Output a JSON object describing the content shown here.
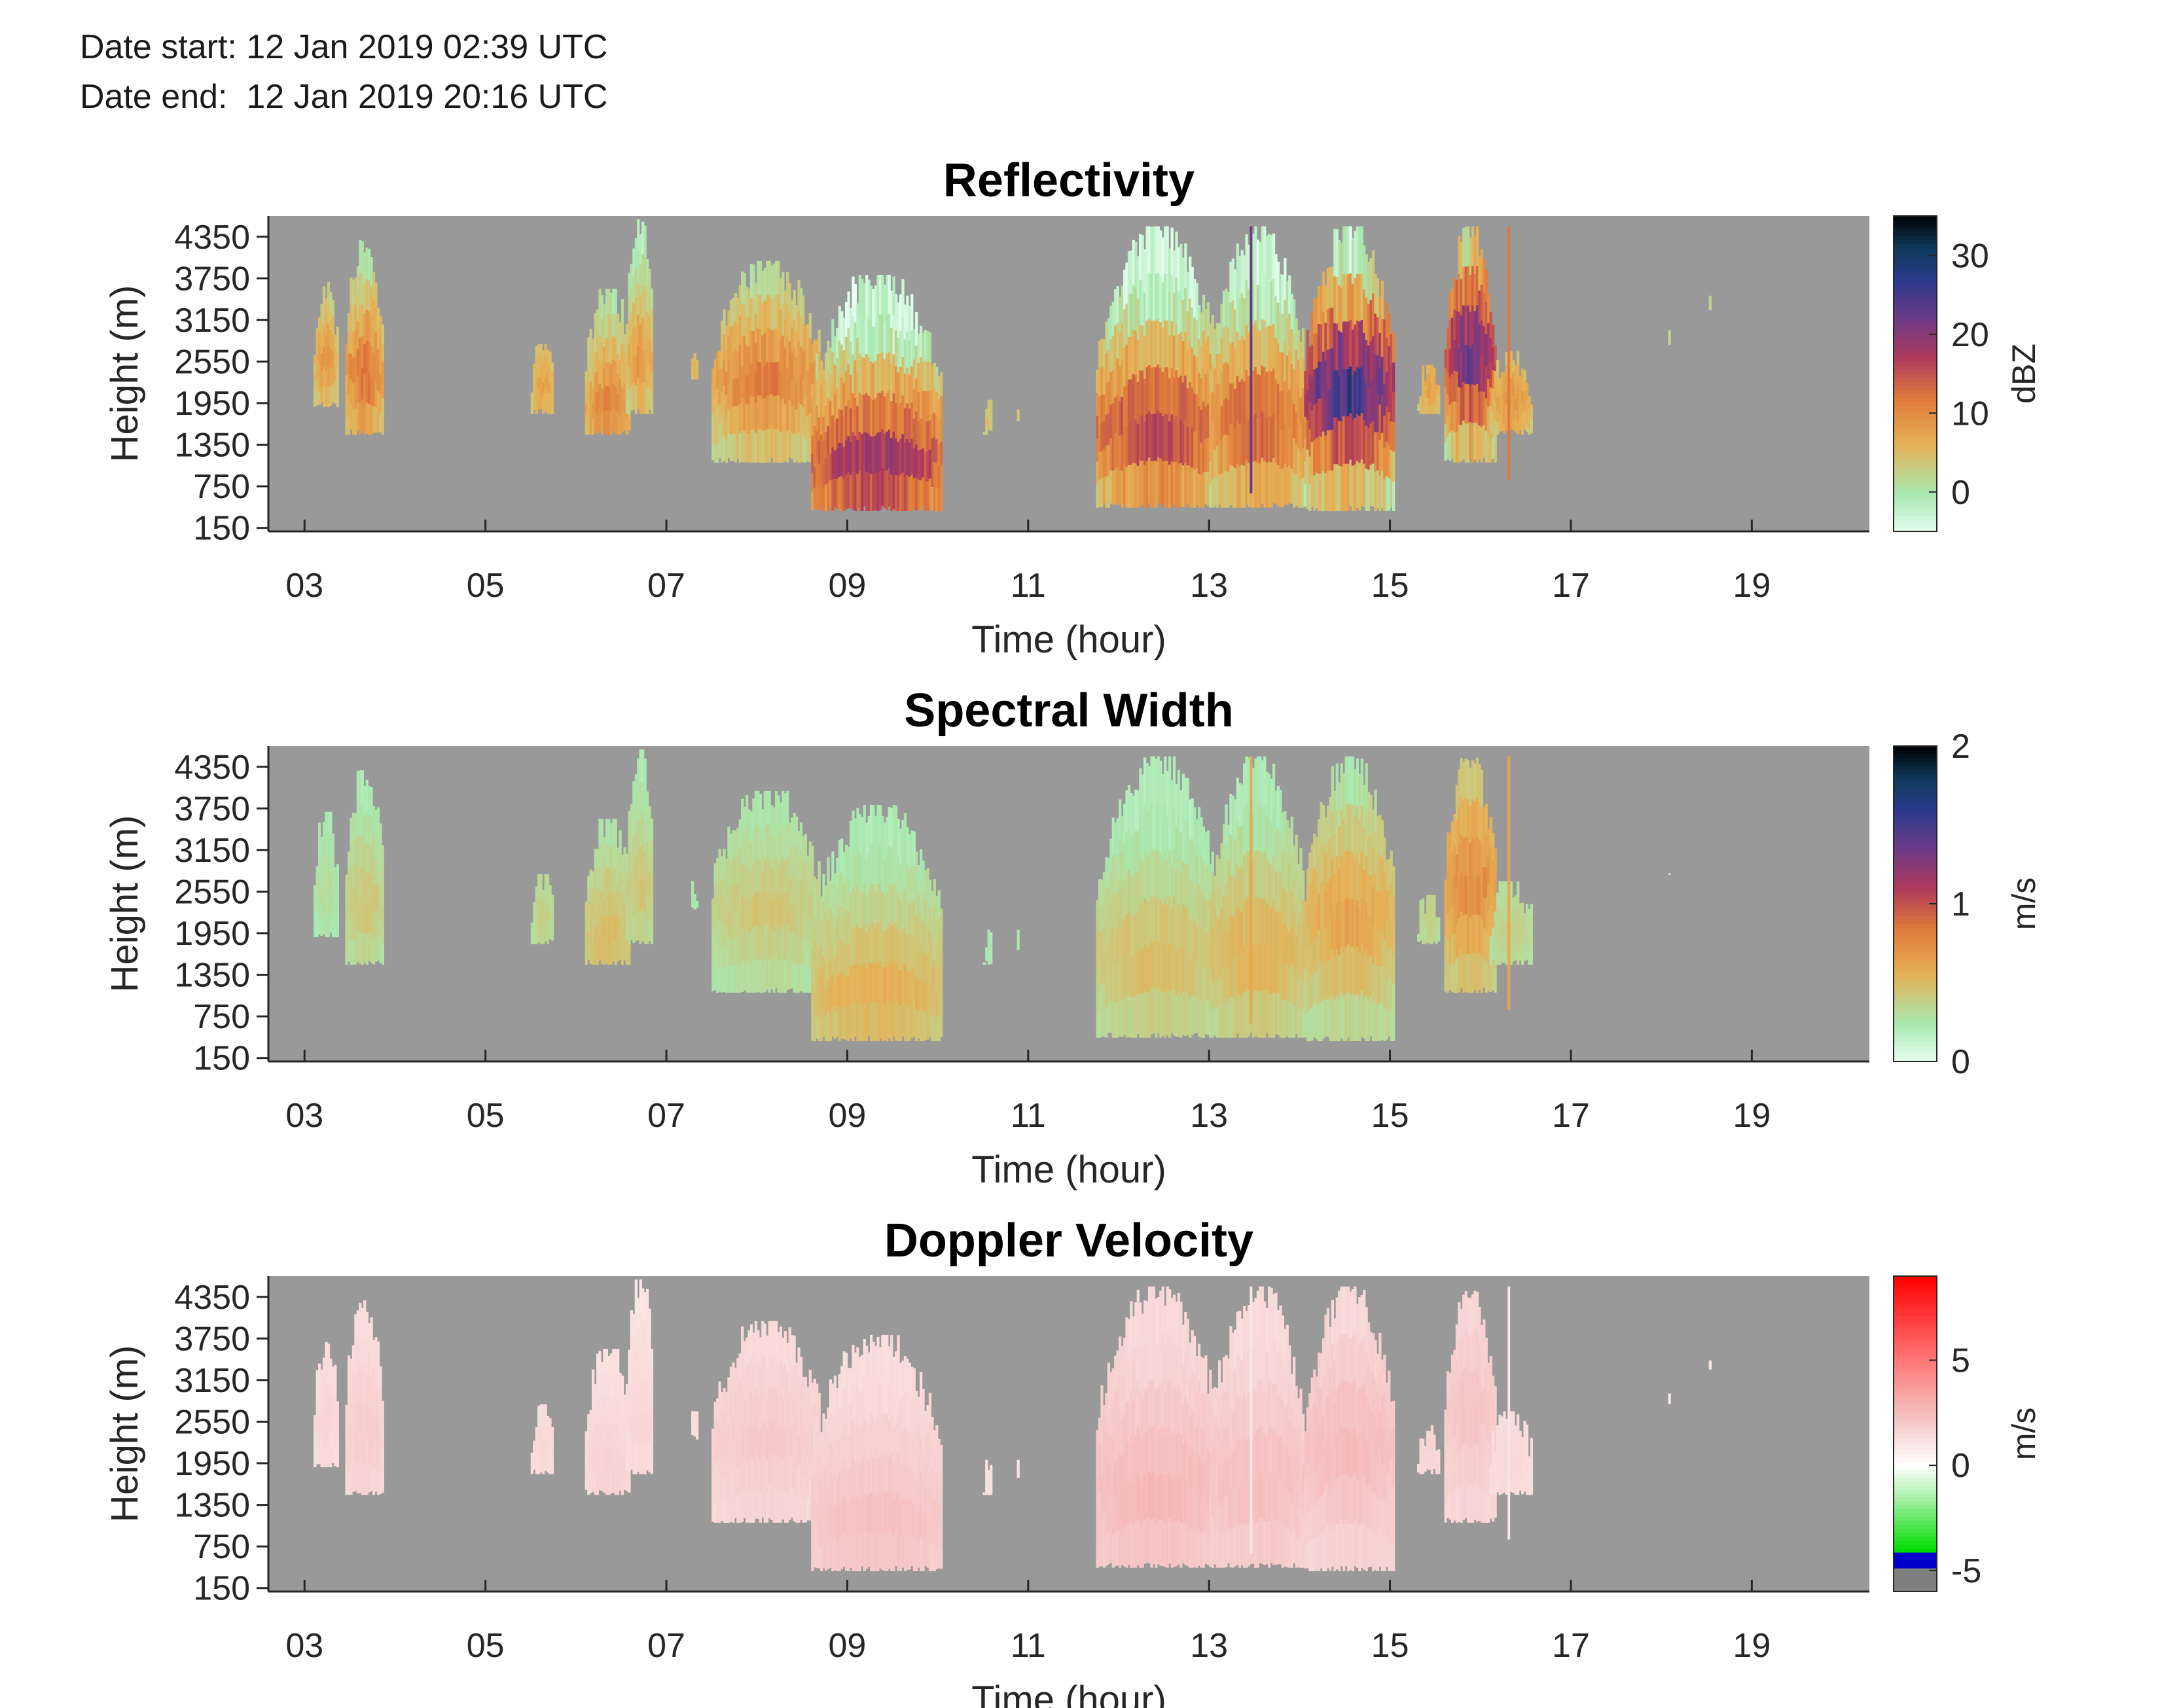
{
  "header": {
    "date_start": "Date start: 12 Jan 2019 02:39 UTC",
    "date_end": "Date end:  12 Jan 2019 20:16 UTC"
  },
  "colors": {
    "background_fill": "#999999",
    "axis": "#262626"
  },
  "chart_data": [
    {
      "type": "heatmap",
      "title": "Reflectivity",
      "xlabel": "Time (hour)",
      "ylabel": "Height (m)",
      "x_ticks": [
        "03",
        "05",
        "07",
        "09",
        "11",
        "13",
        "15",
        "17",
        "19"
      ],
      "x_tick_values": [
        3,
        5,
        7,
        9,
        11,
        13,
        15,
        17,
        19
      ],
      "y_ticks": [
        "150",
        "750",
        "1350",
        "1950",
        "2550",
        "3150",
        "3750",
        "4350"
      ],
      "y_tick_values": [
        150,
        750,
        1350,
        1950,
        2550,
        3150,
        3750,
        4350
      ],
      "xlim": [
        2.6,
        20.3
      ],
      "ylim": [
        100,
        4650
      ],
      "colorbar": {
        "label": "dBZ",
        "ticks": [
          "0",
          "10",
          "20",
          "30"
        ],
        "tick_values": [
          0,
          10,
          20,
          30
        ],
        "range": [
          -5,
          35
        ],
        "colormap": "cubehelix-like (light green → orange → purple → navy → black)"
      }
    },
    {
      "type": "heatmap",
      "title": "Spectral Width",
      "xlabel": "Time (hour)",
      "ylabel": "Height (m)",
      "x_ticks": [
        "03",
        "05",
        "07",
        "09",
        "11",
        "13",
        "15",
        "17",
        "19"
      ],
      "x_tick_values": [
        3,
        5,
        7,
        9,
        11,
        13,
        15,
        17,
        19
      ],
      "y_ticks": [
        "150",
        "750",
        "1350",
        "1950",
        "2550",
        "3150",
        "3750",
        "4350"
      ],
      "y_tick_values": [
        150,
        750,
        1350,
        1950,
        2550,
        3150,
        3750,
        4350
      ],
      "xlim": [
        2.6,
        20.3
      ],
      "ylim": [
        100,
        4650
      ],
      "colorbar": {
        "label": "m/s",
        "ticks": [
          "0",
          "1",
          "2"
        ],
        "tick_values": [
          0,
          1,
          2
        ],
        "range": [
          0,
          2
        ],
        "colormap": "cubehelix-like (light green → orange → purple → navy → black)"
      }
    },
    {
      "type": "heatmap",
      "title": "Doppler Velocity",
      "xlabel": "Time (hour)",
      "ylabel": "Height (m)",
      "x_ticks": [
        "03",
        "05",
        "07",
        "09",
        "11",
        "13",
        "15",
        "17",
        "19"
      ],
      "x_tick_values": [
        3,
        5,
        7,
        9,
        11,
        13,
        15,
        17,
        19
      ],
      "y_ticks": [
        "150",
        "750",
        "1350",
        "1950",
        "2550",
        "3150",
        "3750",
        "4350"
      ],
      "y_tick_values": [
        150,
        750,
        1350,
        1950,
        2550,
        3150,
        3750,
        4350
      ],
      "xlim": [
        2.6,
        20.3
      ],
      "ylim": [
        100,
        4650
      ],
      "colorbar": {
        "label": "m/s",
        "ticks": [
          "-5",
          "0",
          "5"
        ],
        "tick_values": [
          -5,
          0,
          5
        ],
        "range": [
          -6,
          9
        ],
        "colormap": "diverging (blue/green negative → white zero → red positive)"
      }
    }
  ],
  "echo_regions": [
    {
      "t0": 3.1,
      "t1": 3.35,
      "h0": 1900,
      "h1": 3700,
      "peak_h": 2600,
      "z": 9,
      "sw": 0.25,
      "v": 1.5
    },
    {
      "t0": 3.45,
      "t1": 3.85,
      "h0": 1500,
      "h1": 4300,
      "peak_h": 2400,
      "z": 13,
      "sw": 0.35,
      "v": 1.8
    },
    {
      "t0": 5.5,
      "t1": 5.75,
      "h0": 1800,
      "h1": 2800,
      "peak_h": 2200,
      "z": 8,
      "sw": 0.3,
      "v": 1.4
    },
    {
      "t0": 6.1,
      "t1": 6.6,
      "h0": 1500,
      "h1": 3600,
      "peak_h": 1900,
      "z": 11,
      "sw": 0.4,
      "v": 1.6
    },
    {
      "t0": 6.55,
      "t1": 6.85,
      "h0": 1800,
      "h1": 4600,
      "peak_h": 2600,
      "z": 9,
      "sw": 0.35,
      "v": 1.5
    },
    {
      "t0": 7.25,
      "t1": 7.35,
      "h0": 2300,
      "h1": 2700,
      "peak_h": 2500,
      "z": 6,
      "sw": 0.2,
      "v": 1.2
    },
    {
      "t0": 7.5,
      "t1": 8.7,
      "h0": 1100,
      "h1": 4000,
      "peak_h": 2300,
      "z": 12,
      "sw": 0.35,
      "v": 1.9
    },
    {
      "t0": 8.6,
      "t1": 10.05,
      "h0": 400,
      "h1": 3800,
      "peak_h": 1100,
      "z": 20,
      "sw": 0.45,
      "v": 2.2
    },
    {
      "t0": 10.5,
      "t1": 10.6,
      "h0": 1500,
      "h1": 2000,
      "peak_h": 1700,
      "z": 5,
      "sw": 0.2,
      "v": 1.1
    },
    {
      "t0": 10.85,
      "t1": 10.9,
      "h0": 1700,
      "h1": 2000,
      "peak_h": 1850,
      "z": 4,
      "sw": 0.2,
      "v": 1.0
    },
    {
      "t0": 11.75,
      "t1": 13.1,
      "h0": 450,
      "h1": 4500,
      "peak_h": 1600,
      "z": 18,
      "sw": 0.4,
      "v": 2.5
    },
    {
      "t0": 13.0,
      "t1": 14.05,
      "h0": 450,
      "h1": 4500,
      "peak_h": 1700,
      "z": 15,
      "sw": 0.45,
      "v": 2.3
    },
    {
      "t0": 14.05,
      "t1": 15.05,
      "h0": 400,
      "h1": 4500,
      "peak_h": 2200,
      "z": 27,
      "sw": 0.5,
      "v": 2.4
    },
    {
      "t0": 15.3,
      "t1": 15.55,
      "h0": 1800,
      "h1": 2500,
      "peak_h": 2200,
      "z": 8,
      "sw": 0.3,
      "v": 1.5
    },
    {
      "t0": 15.6,
      "t1": 16.15,
      "h0": 1100,
      "h1": 4500,
      "peak_h": 2700,
      "z": 24,
      "sw": 0.6,
      "v": 2.1
    },
    {
      "t0": 16.1,
      "t1": 16.55,
      "h0": 1500,
      "h1": 2700,
      "peak_h": 2000,
      "z": 9,
      "sw": 0.3,
      "v": 1.4
    },
    {
      "t0": 18.05,
      "t1": 18.08,
      "h0": 2800,
      "h1": 3000,
      "peak_h": 2900,
      "z": 3,
      "sw": 0.1,
      "v": 1.0
    },
    {
      "t0": 18.5,
      "t1": 18.53,
      "h0": 3300,
      "h1": 3500,
      "peak_h": 3400,
      "z": 3,
      "sw": 0.1,
      "v": 1.0
    }
  ],
  "vertical_streaks": [
    {
      "t": 13.45,
      "h0": 650,
      "h1": 4500,
      "z": 22
    },
    {
      "t": 16.3,
      "h0": 850,
      "h1": 4500,
      "z": 12
    }
  ]
}
